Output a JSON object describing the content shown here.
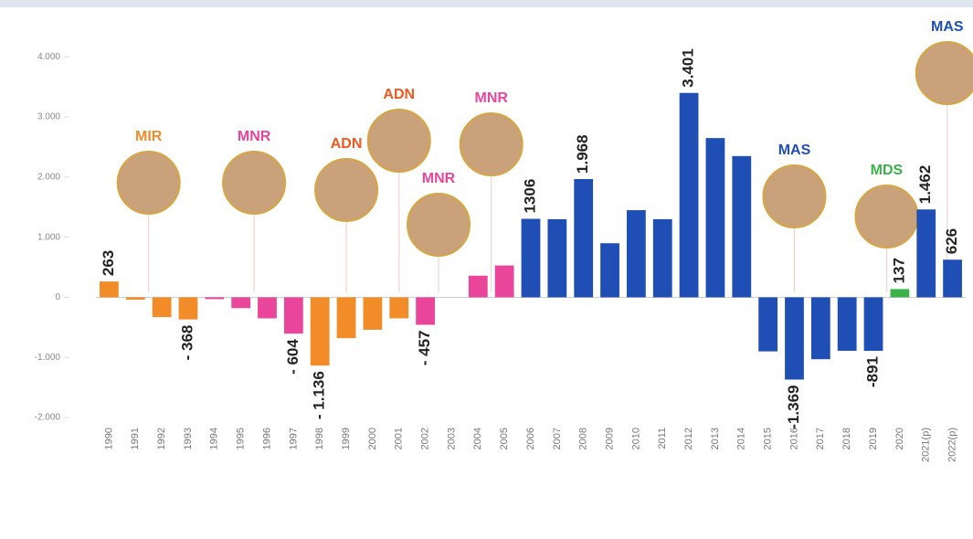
{
  "chart_data": {
    "type": "bar",
    "categories": [
      "1990",
      "1991",
      "1992",
      "1993",
      "1994",
      "1995",
      "1996",
      "1997",
      "1998",
      "1999",
      "2000",
      "2001",
      "2002",
      "2003",
      "2004",
      "2005",
      "2006",
      "2007",
      "2008",
      "2009",
      "2010",
      "2011",
      "2012",
      "2013",
      "2014",
      "2015",
      "2016",
      "2017",
      "2018",
      "2019",
      "2020",
      "2021(p)",
      "2022(p)"
    ],
    "values": [
      263,
      -40,
      -330,
      -368,
      -30,
      -180,
      -350,
      -604,
      -1136,
      -680,
      -540,
      -350,
      -457,
      0,
      360,
      530,
      1306,
      1300,
      1968,
      900,
      1450,
      1300,
      3401,
      2650,
      2350,
      -900,
      -1369,
      -1030,
      -890,
      -891,
      137,
      1462,
      626
    ],
    "value_labels": [
      "263",
      null,
      null,
      "- 368",
      null,
      null,
      null,
      "- 604",
      "- 1.136",
      null,
      null,
      null,
      "- 457",
      null,
      null,
      null,
      "1306",
      null,
      "1.968",
      null,
      null,
      null,
      "3.401",
      null,
      null,
      null,
      "-1.369",
      null,
      null,
      "-891",
      "137",
      "1.462",
      "626"
    ],
    "colors": [
      "#f28c28",
      "#f28c28",
      "#f28c28",
      "#f28c28",
      "#e8459b",
      "#e8459b",
      "#e8459b",
      "#e8459b",
      "#f28c28",
      "#f28c28",
      "#f28c28",
      "#f28c28",
      "#e8459b",
      "#e8459b",
      "#e8459b",
      "#e8459b",
      "#1f4fb4",
      "#1f4fb4",
      "#1f4fb4",
      "#1f4fb4",
      "#1f4fb4",
      "#1f4fb4",
      "#1f4fb4",
      "#1f4fb4",
      "#1f4fb4",
      "#1f4fb4",
      "#1f4fb4",
      "#1f4fb4",
      "#1f4fb4",
      "#1f4fb4",
      "#3cb34a",
      "#1f4fb4",
      "#1f4fb4"
    ],
    "ylim": [
      -2000,
      4400
    ],
    "yticks": [
      {
        "value": -2000,
        "label": "-2.000"
      },
      {
        "value": -1000,
        "label": "-1.000"
      },
      0,
      {
        "value": 1000,
        "label": "1.000"
      },
      {
        "value": 2000,
        "label": "2.000"
      },
      {
        "value": 3000,
        "label": "3.000"
      },
      {
        "value": 4000,
        "label": "4.000"
      }
    ],
    "annotations": [
      {
        "text": "MIR",
        "color": "#f28c28",
        "index": 1.5
      },
      {
        "text": "MNR",
        "color": "#e8459b",
        "index": 5.5
      },
      {
        "text": "ADN",
        "color": "#f0581e",
        "index": 9
      },
      {
        "text": "ADN",
        "color": "#f0581e",
        "index": 11
      },
      {
        "text": "MNR",
        "color": "#e8459b",
        "index": 12.5
      },
      {
        "text": "MNR",
        "color": "#e8459b",
        "index": 14.5
      },
      {
        "text": "MAS",
        "color": "#1f4fb4",
        "index": 26
      },
      {
        "text": "MDS",
        "color": "#3cb34a",
        "index": 29.5
      },
      {
        "text": "MAS",
        "color": "#1f4fb4",
        "index": 31.8
      }
    ]
  }
}
